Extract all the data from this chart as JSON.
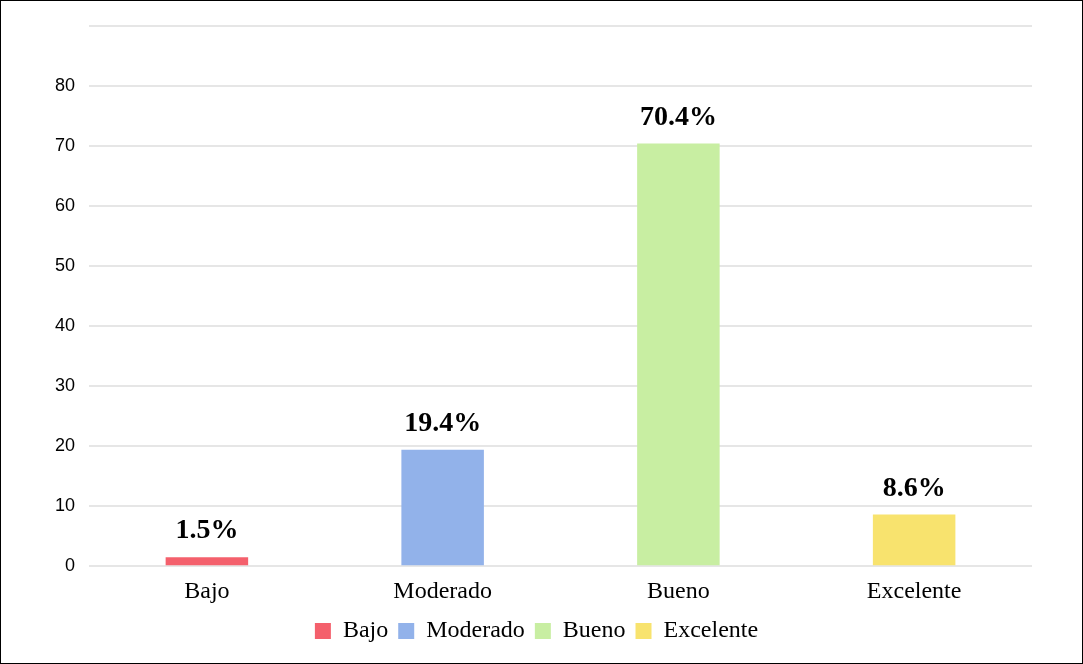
{
  "chart_data": {
    "type": "bar",
    "categories": [
      "Bajo",
      "Moderado",
      "Bueno",
      "Excelente"
    ],
    "series": [
      {
        "name": "Bajo",
        "color": "#f4606c",
        "values": [
          1.5,
          null,
          null,
          null
        ],
        "value_labels": [
          "1.5%",
          null,
          null,
          null
        ]
      },
      {
        "name": "Moderado",
        "color": "#92b2ea",
        "values": [
          null,
          19.4,
          null,
          null
        ],
        "value_labels": [
          null,
          "19.4%",
          null,
          null
        ]
      },
      {
        "name": "Bueno",
        "color": "#c8eea2",
        "values": [
          null,
          null,
          70.4,
          null
        ],
        "value_labels": [
          null,
          null,
          "70.4%",
          null
        ]
      },
      {
        "name": "Excelente",
        "color": "#f8e36e",
        "values": [
          null,
          null,
          null,
          8.6
        ],
        "value_labels": [
          null,
          null,
          null,
          "8.6%"
        ]
      }
    ],
    "ylim": [
      0,
      90
    ],
    "yticks": [
      0,
      10,
      20,
      30,
      40,
      50,
      60,
      70,
      80,
      {
        "value": 90,
        "label": null
      }
    ],
    "grid": "y",
    "legend": "bottom"
  }
}
